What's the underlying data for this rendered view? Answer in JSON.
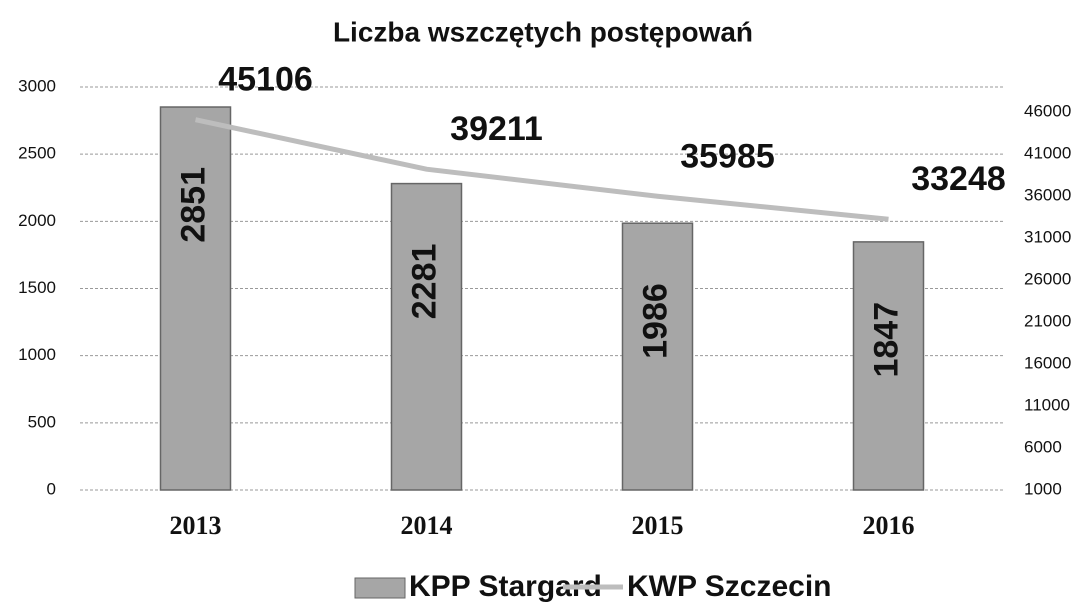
{
  "chart_data": {
    "type": "bar-line",
    "title": "Liczba wszczętych postępowań",
    "categories": [
      "2013",
      "2014",
      "2015",
      "2016"
    ],
    "series": [
      {
        "name": "KPP Stargard",
        "type": "bar",
        "color": "#a6a6a6",
        "values": [
          2851,
          2281,
          1986,
          1847
        ]
      },
      {
        "name": "KWP Szczecin",
        "type": "line",
        "axis": "y2",
        "color": "#bdbdbd",
        "values": [
          45106,
          39211,
          35985,
          33248
        ]
      }
    ],
    "ylim": [
      0,
      3000
    ],
    "yticks": [
      0,
      500,
      1000,
      1500,
      2000,
      2500,
      3000
    ],
    "y2lim": [
      1000,
      49000
    ],
    "y2ticks": [
      1000,
      6000,
      11000,
      16000,
      21000,
      26000,
      31000,
      36000,
      41000,
      46000
    ],
    "grid": true,
    "legend": "bottom"
  }
}
